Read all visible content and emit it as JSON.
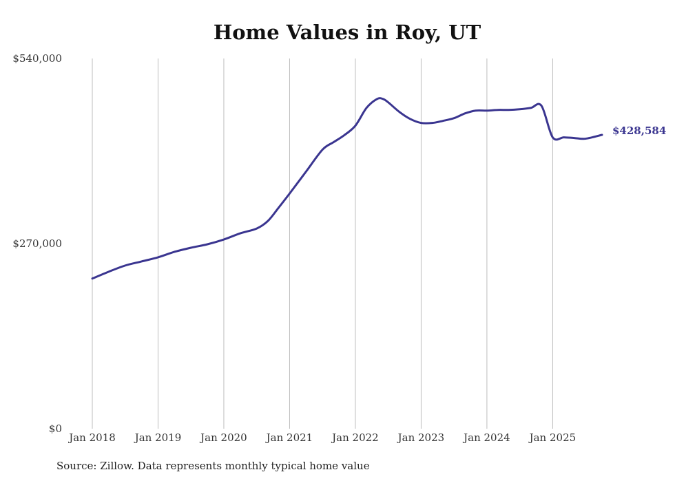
{
  "chart_data": {
    "type": "line",
    "title": "Home Values in Roy, UT",
    "xlabel": "",
    "ylabel": "",
    "ylim": [
      0,
      540000
    ],
    "y_ticks": [
      {
        "value": 0,
        "label": "$0"
      },
      {
        "value": 270000,
        "label": "$270,000"
      },
      {
        "value": 540000,
        "label": "$540,000"
      }
    ],
    "x_ticks": [
      {
        "value": 2018.0,
        "label": "Jan 2018"
      },
      {
        "value": 2019.0,
        "label": "Jan 2019"
      },
      {
        "value": 2020.0,
        "label": "Jan 2020"
      },
      {
        "value": 2021.0,
        "label": "Jan 2021"
      },
      {
        "value": 2022.0,
        "label": "Jan 2022"
      },
      {
        "value": 2023.0,
        "label": "Jan 2023"
      },
      {
        "value": 2024.0,
        "label": "Jan 2024"
      },
      {
        "value": 2025.0,
        "label": "Jan 2025"
      }
    ],
    "xlim": [
      2018.0,
      2025.75
    ],
    "grid": "vertical",
    "series": [
      {
        "color": "#3a3590",
        "x": [
          2018.0,
          2018.25,
          2018.5,
          2018.75,
          2019.0,
          2019.25,
          2019.5,
          2019.75,
          2020.0,
          2020.25,
          2020.5,
          2020.67,
          2020.83,
          2021.0,
          2021.25,
          2021.5,
          2021.67,
          2021.83,
          2022.0,
          2022.17,
          2022.33,
          2022.42,
          2022.5,
          2022.67,
          2022.83,
          2023.0,
          2023.17,
          2023.33,
          2023.5,
          2023.67,
          2023.83,
          2024.0,
          2024.17,
          2024.33,
          2024.5,
          2024.67,
          2024.83,
          2025.0,
          2025.17,
          2025.33,
          2025.5,
          2025.75
        ],
        "y": [
          219000,
          229000,
          238000,
          244000,
          250000,
          258000,
          264000,
          269000,
          276000,
          285000,
          292000,
          303000,
          322000,
          343000,
          375000,
          407000,
          418000,
          428000,
          442000,
          468000,
          481000,
          481000,
          476000,
          462000,
          452000,
          446000,
          446000,
          449000,
          453000,
          460000,
          464000,
          464000,
          465000,
          465000,
          466000,
          468000,
          471000,
          425000,
          425000,
          424000,
          423000,
          428584
        ]
      }
    ],
    "end_label": "$428,584",
    "source": "Source: Zillow. Data represents monthly typical home value"
  }
}
